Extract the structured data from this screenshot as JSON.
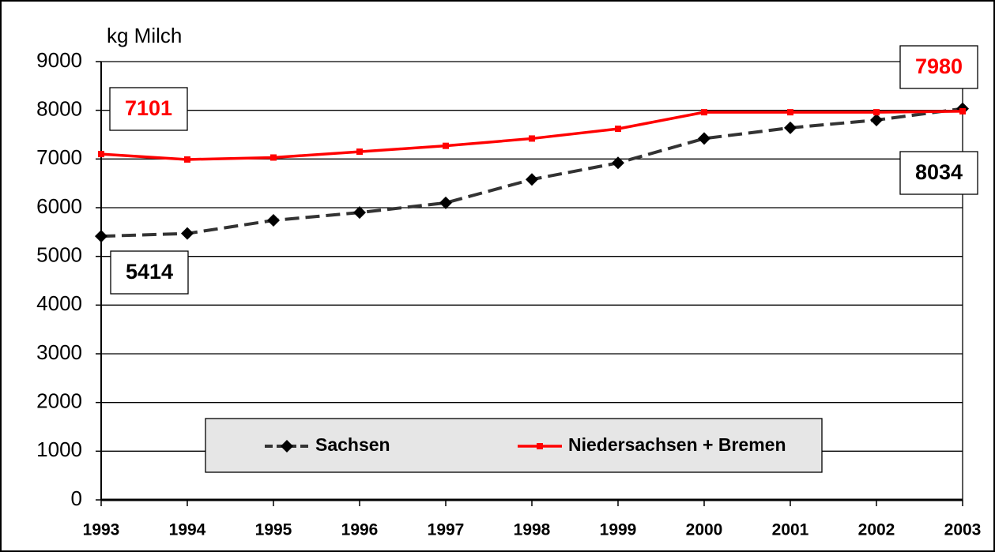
{
  "chart_data": {
    "type": "line",
    "y_label": "kg Milch",
    "x": [
      1993,
      1994,
      1995,
      1996,
      1997,
      1998,
      1999,
      2000,
      2001,
      2002,
      2003
    ],
    "series": [
      {
        "name": "Sachsen",
        "color": "#333333",
        "values": [
          5414,
          5470,
          5740,
          5900,
          6100,
          6580,
          6920,
          7420,
          7640,
          7800,
          8034
        ]
      },
      {
        "name": "Niedersachsen + Bremen",
        "color": "#ff0000",
        "values": [
          7101,
          6990,
          7030,
          7150,
          7270,
          7420,
          7620,
          7960,
          7960,
          7960,
          7980
        ]
      }
    ],
    "xlim": [
      1993,
      2003
    ],
    "xticks": [
      1993,
      1994,
      1995,
      1996,
      1997,
      1998,
      1999,
      2000,
      2001,
      2002,
      2003
    ],
    "ylim": [
      0,
      9000
    ],
    "yticks": [
      0,
      1000,
      2000,
      3000,
      4000,
      5000,
      6000,
      7000,
      8000,
      9000
    ],
    "grid": true,
    "legend": "bottom"
  }
}
